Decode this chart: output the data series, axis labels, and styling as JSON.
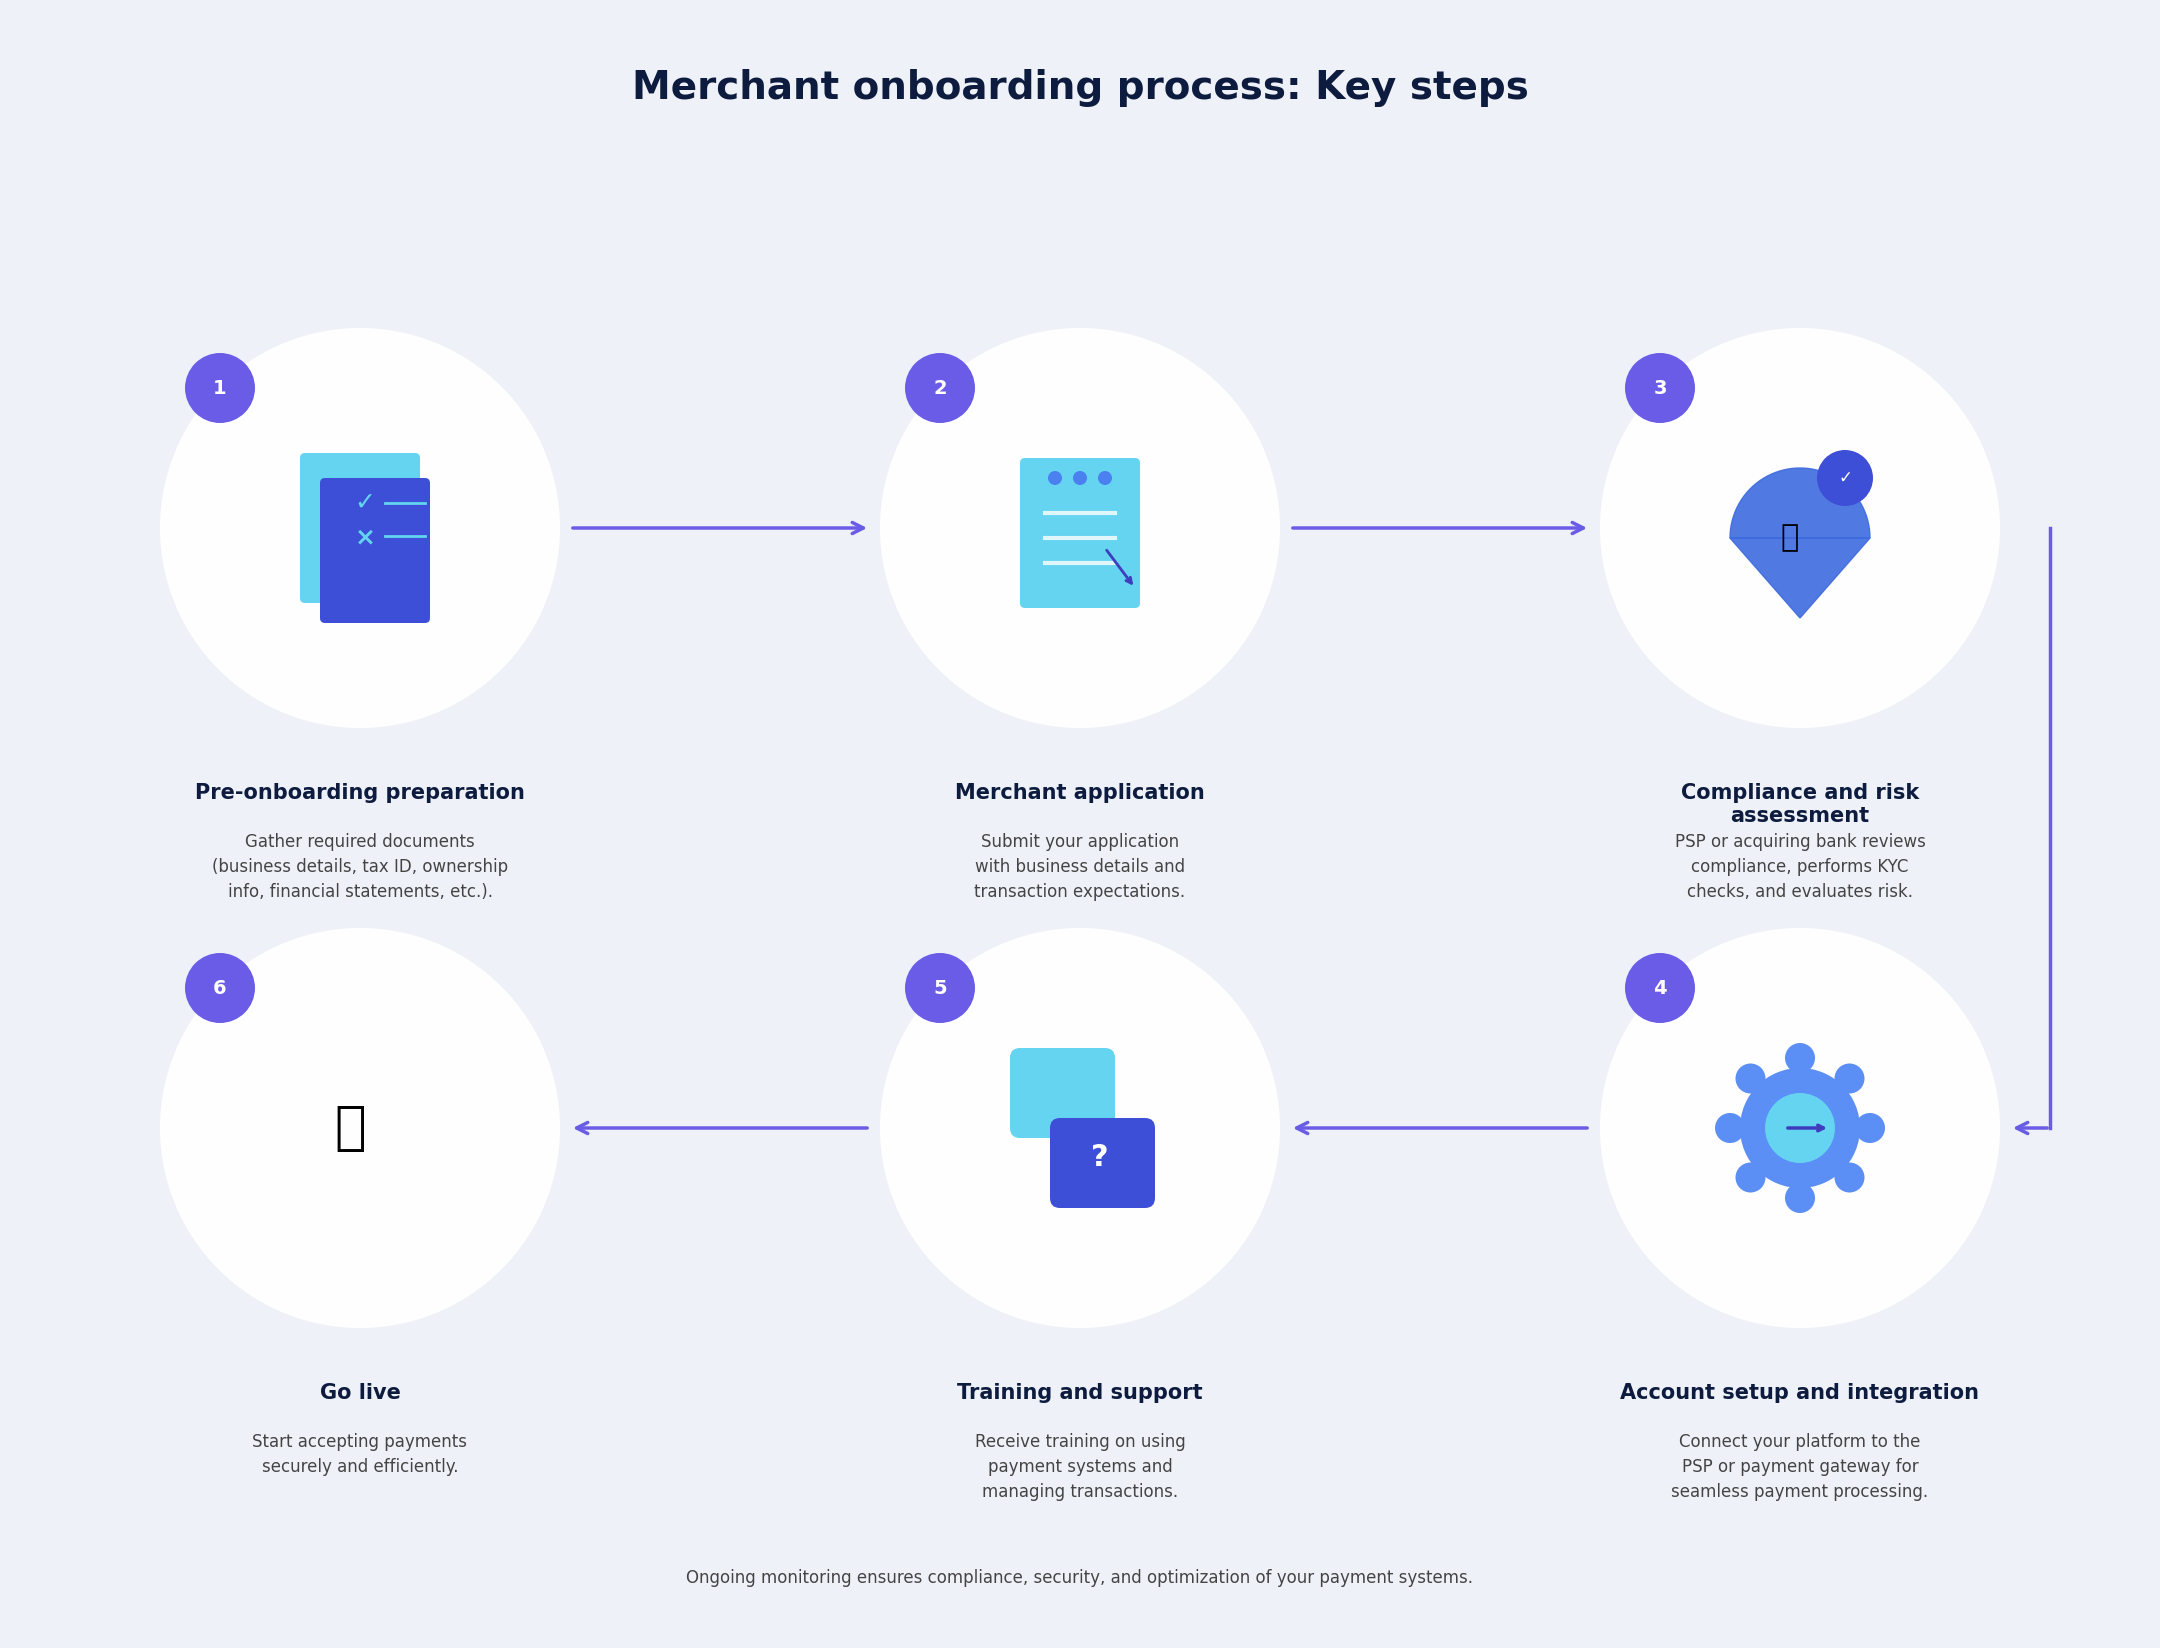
{
  "title": "Merchant onboarding process: Key steps",
  "title_color": "#0d1b3e",
  "title_fontsize": 28,
  "bg_color": "#eef2f8",
  "circle_bg": "#ffffff",
  "number_bg": "#6b5ce7",
  "number_color": "#ffffff",
  "arrow_color": "#6b5ce7",
  "step_title_color": "#0d1b3e",
  "step_desc_color": "#444444",
  "footer_color": "#444444",
  "footer_text": "Ongoing monitoring ensures compliance, security, and optimization of your payment systems.",
  "steps": [
    {
      "id": 1,
      "title": "Pre-onboarding preparation",
      "desc": "Gather required documents\n(business details, tax ID, ownership\ninfo, financial statements, etc.).",
      "row": 0,
      "col": 0
    },
    {
      "id": 2,
      "title": "Merchant application",
      "desc": "Submit your application\nwith business details and\ntransaction expectations.",
      "row": 0,
      "col": 1
    },
    {
      "id": 3,
      "title": "Compliance and risk\nassessment",
      "desc": "PSP or acquiring bank reviews\ncompliance, performs KYC\nchecks, and evaluates risk.",
      "row": 0,
      "col": 2
    },
    {
      "id": 4,
      "title": "Account setup and integration",
      "desc": "Connect your platform to the\nPSP or payment gateway for\nseamless payment processing.",
      "row": 1,
      "col": 2
    },
    {
      "id": 5,
      "title": "Training and support",
      "desc": "Receive training on using\npayment systems and\nmanaging transactions.",
      "row": 1,
      "col": 1
    },
    {
      "id": 6,
      "title": "Go live",
      "desc": "Start accepting payments\nsecurely and efficiently.",
      "row": 1,
      "col": 0
    }
  ]
}
